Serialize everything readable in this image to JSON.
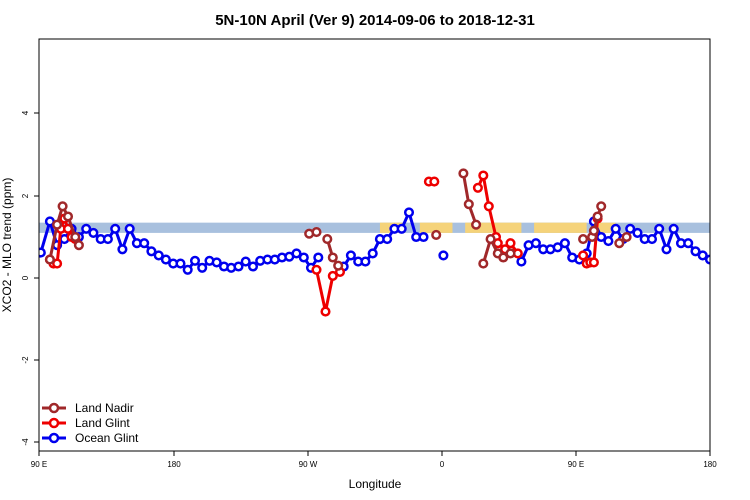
{
  "chart_data": {
    "type": "line",
    "title": "5N-10N April (Ver 9)   2014-09-06 to 2018-12-31",
    "xlabel": "Longitude",
    "ylabel": "XCO2 - MLO trend (ppm)",
    "xlim": [
      90,
      450
    ],
    "ylim": [
      -4,
      5.8
    ],
    "x_ticks": [
      {
        "value": 90,
        "label": "90 E"
      },
      {
        "value": 180,
        "label": "180"
      },
      {
        "value": 270,
        "label": "90 W"
      },
      {
        "value": 360,
        "label": "0"
      },
      {
        "value": 450,
        "label": "90 E"
      },
      {
        "value": 540,
        "label": "180"
      }
    ],
    "x_display": {
      "x0": 90,
      "x1": 450,
      "domain": [
        90,
        540
      ]
    },
    "y_ticks": [
      {
        "value": -4,
        "label": "-4"
      },
      {
        "value": -2,
        "label": "-2"
      },
      {
        "value": 0,
        "label": "0"
      },
      {
        "value": 2,
        "label": "2"
      },
      {
        "value": 4,
        "label": "4"
      }
    ],
    "land_band": {
      "y_min": 1.1,
      "y_max": 1.35,
      "land_color": "#f5d37a",
      "ocean_color": "#a8c0de",
      "land_ranges": [
        [
          278,
          292
        ],
        [
          300,
          318
        ],
        [
          325,
          356
        ],
        [
          363,
          392
        ],
        [
          396,
          408
        ],
        [
          495,
          503
        ]
      ]
    },
    "grid": false,
    "legend_position": "bottom-left",
    "legend": [
      {
        "name": "Land Nadir",
        "color": "#a0282a"
      },
      {
        "name": "Land Glint",
        "color": "#ee0000"
      },
      {
        "name": "Ocean Glint",
        "color": "#0000ee"
      }
    ],
    "series": [
      {
        "name": "Ocean Glint",
        "color": "#0000ee",
        "segments": [
          [
            [
              91,
              0.62
            ],
            [
              96,
              1.38
            ],
            [
              100,
              0.8
            ],
            [
              104,
              0.95
            ],
            [
              108,
              1.2
            ],
            [
              112,
              1.0
            ],
            [
              116,
              1.2
            ],
            [
              120,
              1.1
            ],
            [
              124,
              0.95
            ],
            [
              128,
              0.95
            ],
            [
              132,
              1.2
            ],
            [
              136,
              0.7
            ],
            [
              140,
              1.2
            ],
            [
              144,
              0.85
            ],
            [
              148,
              0.85
            ],
            [
              152,
              0.65
            ],
            [
              156,
              0.55
            ],
            [
              160,
              0.45
            ],
            [
              164,
              0.35
            ],
            [
              168,
              0.35
            ],
            [
              172,
              0.2
            ],
            [
              176,
              0.42
            ],
            [
              180,
              0.25
            ],
            [
              184,
              0.42
            ],
            [
              188,
              0.38
            ],
            [
              192,
              0.28
            ],
            [
              196,
              0.25
            ],
            [
              200,
              0.28
            ],
            [
              204,
              0.4
            ],
            [
              208,
              0.28
            ],
            [
              212,
              0.42
            ],
            [
              216,
              0.45
            ],
            [
              220,
              0.45
            ],
            [
              224,
              0.5
            ],
            [
              228,
              0.52
            ],
            [
              232,
              0.6
            ],
            [
              236,
              0.5
            ],
            [
              240,
              0.25
            ],
            [
              244,
              0.5
            ]
          ],
          [
            [
              258,
              0.28
            ],
            [
              262,
              0.55
            ],
            [
              266,
              0.4
            ],
            [
              270,
              0.4
            ],
            [
              274,
              0.6
            ],
            [
              278,
              0.95
            ],
            [
              282,
              0.95
            ],
            [
              286,
              1.2
            ],
            [
              290,
              1.2
            ],
            [
              294,
              1.6
            ],
            [
              298,
              1.0
            ],
            [
              302,
              1.0
            ]
          ],
          [
            [
              313,
              0.55
            ]
          ],
          [
            [
              356,
              0.4
            ],
            [
              360,
              0.8
            ],
            [
              364,
              0.85
            ],
            [
              368,
              0.7
            ],
            [
              372,
              0.7
            ],
            [
              376,
              0.75
            ],
            [
              380,
              0.85
            ],
            [
              384,
              0.5
            ],
            [
              388,
              0.45
            ],
            [
              392,
              0.6
            ],
            [
              396,
              1.38
            ],
            [
              400,
              1.0
            ],
            [
              404,
              0.9
            ],
            [
              408,
              1.2
            ],
            [
              412,
              0.95
            ],
            [
              416,
              1.2
            ],
            [
              420,
              1.1
            ],
            [
              424,
              0.95
            ],
            [
              428,
              0.95
            ],
            [
              432,
              1.2
            ],
            [
              436,
              0.7
            ],
            [
              440,
              1.2
            ],
            [
              444,
              0.85
            ],
            [
              448,
              0.85
            ],
            [
              452,
              0.65
            ],
            [
              456,
              0.55
            ],
            [
              460,
              0.45
            ]
          ]
        ]
      },
      {
        "name": "Land Glint",
        "color": "#ee0000",
        "segments": [
          [
            [
              96,
              0.45
            ],
            [
              98,
              0.35
            ],
            [
              100,
              0.35
            ],
            [
              102,
              1.2
            ],
            [
              104,
              1.45
            ],
            [
              106,
              1.2
            ],
            [
              108,
              1.0
            ],
            [
              110,
              0.95
            ]
          ],
          [
            [
              243,
              0.2
            ],
            [
              248,
              -0.82
            ],
            [
              252,
              0.05
            ],
            [
              256,
              0.15
            ]
          ],
          [
            [
              305,
              2.35
            ],
            [
              308,
              2.35
            ]
          ],
          [
            [
              332,
              2.2
            ],
            [
              335,
              2.5
            ],
            [
              338,
              1.75
            ],
            [
              342,
              1.0
            ],
            [
              343,
              0.85
            ],
            [
              347,
              0.7
            ],
            [
              350,
              0.85
            ],
            [
              354,
              0.6
            ]
          ],
          [
            [
              390,
              0.55
            ],
            [
              392,
              0.35
            ],
            [
              394,
              0.38
            ],
            [
              396,
              0.38
            ],
            [
              398,
              1.45
            ]
          ]
        ]
      },
      {
        "name": "Land Nadir",
        "color": "#a0282a",
        "segments": [
          [
            [
              96,
              0.45
            ],
            [
              100,
              1.3
            ],
            [
              103,
              1.75
            ],
            [
              106,
              1.5
            ],
            [
              110,
              1.0
            ],
            [
              112,
              0.8
            ]
          ],
          [
            [
              239,
              1.08
            ],
            [
              243,
              1.12
            ]
          ],
          [
            [
              249,
              0.95
            ],
            [
              252,
              0.5
            ],
            [
              255,
              0.3
            ]
          ],
          [
            [
              309,
              1.05
            ]
          ],
          [
            [
              324,
              2.55
            ],
            [
              327,
              1.8
            ],
            [
              331,
              1.3
            ]
          ],
          [
            [
              335,
              0.35
            ],
            [
              339,
              0.95
            ],
            [
              343,
              0.6
            ],
            [
              346,
              0.5
            ],
            [
              350,
              0.6
            ]
          ],
          [
            [
              390,
              0.95
            ]
          ],
          [
            [
              395,
              1.0
            ],
            [
              396,
              1.15
            ],
            [
              398,
              1.5
            ],
            [
              400,
              1.75
            ]
          ],
          [
            [
              410,
              0.85
            ],
            [
              414,
              1.0
            ]
          ]
        ]
      }
    ]
  }
}
